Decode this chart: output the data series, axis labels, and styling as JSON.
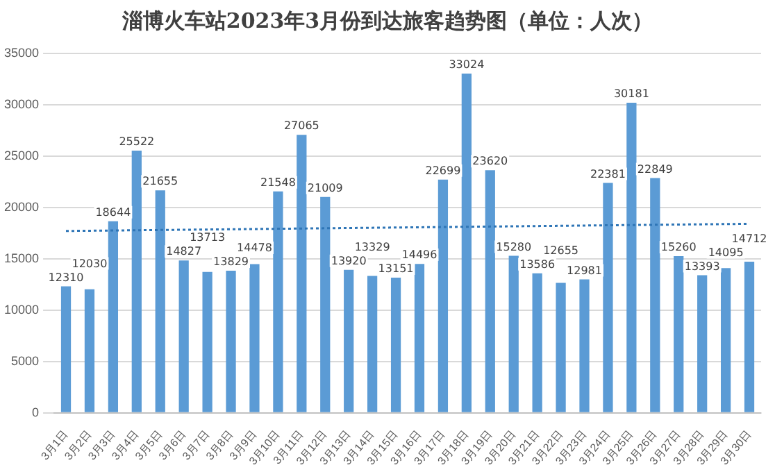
{
  "chart_data": {
    "type": "bar",
    "title": "淄博火车站2023年3月份到达旅客趋势图（单位：人次）",
    "categories": [
      "3月1日",
      "3月2日",
      "3月3日",
      "3月4日",
      "3月5日",
      "3月6日",
      "3月7日",
      "3月8日",
      "3月9日",
      "3月10日",
      "3月11日",
      "3月12日",
      "3月13日",
      "3月14日",
      "3月15日",
      "3月16日",
      "3月17日",
      "3月18日",
      "3月19日",
      "3月20日",
      "3月21日",
      "3月22日",
      "3月23日",
      "3月24日",
      "3月25日",
      "3月26日",
      "3月27日",
      "3月28日",
      "3月29日",
      "3月30日"
    ],
    "series": [
      {
        "color": "#5b9bd5",
        "data_labels": true,
        "values": [
          12310,
          12030,
          18644,
          25522,
          21655,
          14827,
          13713,
          13829,
          14478,
          21548,
          27065,
          21009,
          13920,
          13329,
          13151,
          14496,
          22699,
          33024,
          23620,
          15280,
          13586,
          12655,
          12981,
          22381,
          30181,
          22849,
          15260,
          13393,
          14095,
          14712
        ]
      },
      {
        "type": "line",
        "color": "#2e75b6",
        "line_style": "dotted",
        "marker": "none",
        "values": [
          17700,
          null,
          null,
          null,
          null,
          null,
          null,
          null,
          null,
          null,
          null,
          null,
          null,
          null,
          null,
          null,
          null,
          null,
          null,
          null,
          null,
          null,
          null,
          null,
          null,
          null,
          null,
          null,
          null,
          18400
        ]
      }
    ],
    "ylim": [
      0,
      35000
    ],
    "yticks": [
      0,
      5000,
      10000,
      15000,
      20000,
      25000,
      30000,
      35000
    ],
    "grid": "y",
    "legend": false
  }
}
